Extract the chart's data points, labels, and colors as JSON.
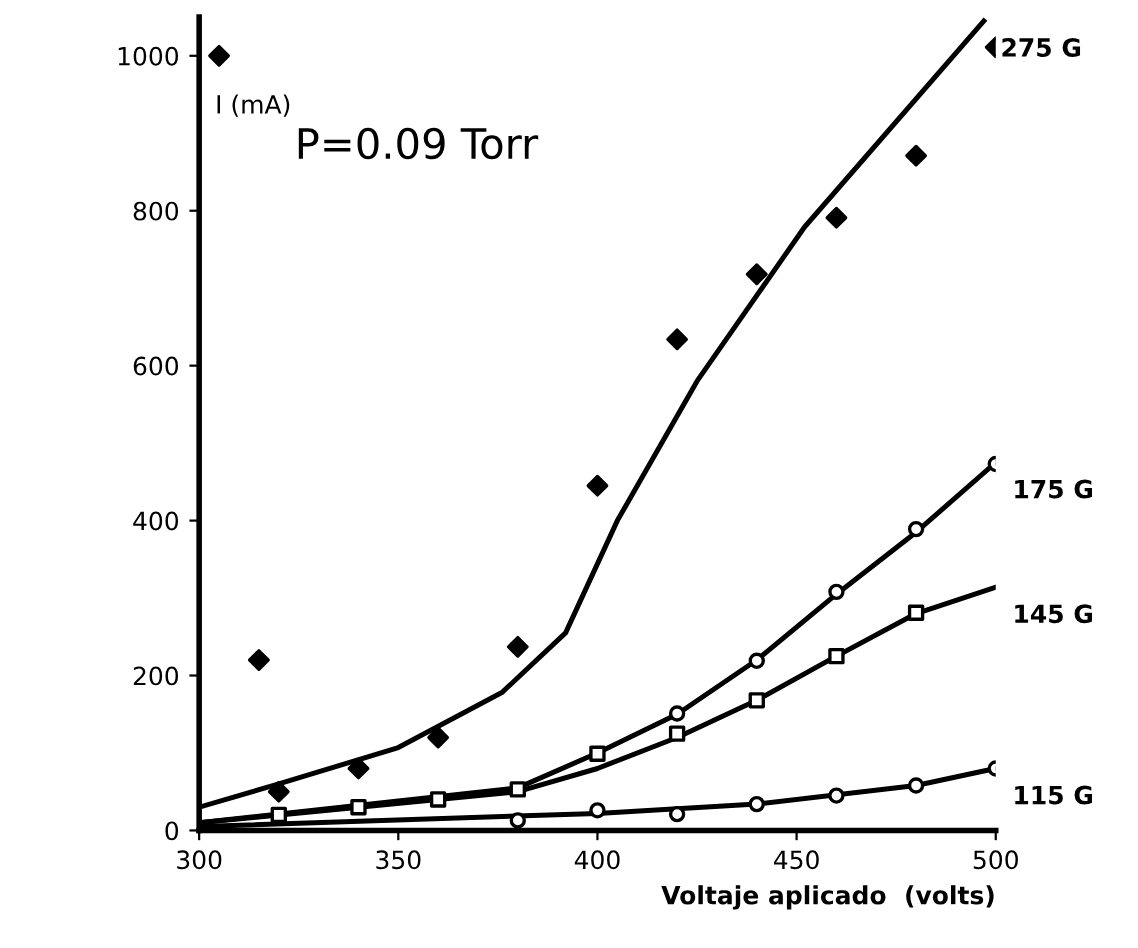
{
  "chart_data": {
    "type": "scatter",
    "xlabel": "Voltaje aplicado  (volts)",
    "ylabel": "I (mA)",
    "xlim": [
      300,
      500
    ],
    "ylim": [
      0,
      1050
    ],
    "xticks": [
      300,
      350,
      400,
      450,
      500
    ],
    "yticks": [
      0,
      200,
      400,
      600,
      800,
      1000
    ],
    "grid": false,
    "legend": false,
    "annotations": [
      "P=0.09 Torr"
    ],
    "series": [
      {
        "marker": "diamond",
        "color": "#000000",
        "x": [
          305,
          315,
          320,
          340,
          360,
          380,
          400,
          420,
          440,
          460,
          480,
          500
        ],
        "values": [
          1000,
          220,
          50,
          80,
          120,
          237,
          445,
          634,
          718,
          791,
          871,
          1011
        ]
      },
      {
        "type": "line",
        "name": "275 G",
        "color": "#000000",
        "x": [
          300,
          320,
          350,
          376,
          392,
          405,
          425,
          452,
          497
        ],
        "values": [
          30,
          60,
          107,
          178,
          255,
          400,
          580,
          779,
          1045
        ]
      },
      {
        "marker": "circle",
        "color": "#000000",
        "x": [
          420,
          440,
          460,
          480,
          500
        ],
        "values": [
          151,
          219,
          308,
          389,
          473
        ]
      },
      {
        "type": "line",
        "name": "175 G",
        "color": "#000000",
        "x": [
          300,
          380,
          400,
          420,
          440,
          460,
          480,
          500
        ],
        "values": [
          10,
          55,
          100,
          150,
          220,
          305,
          385,
          475
        ]
      },
      {
        "marker": "square",
        "color": "#000000",
        "x": [
          320,
          340,
          360,
          380,
          400,
          420,
          440,
          460,
          480
        ],
        "values": [
          20,
          30,
          40,
          53,
          99,
          125,
          168,
          225,
          281
        ]
      },
      {
        "type": "line",
        "name": "145 G",
        "color": "#000000",
        "x": [
          300,
          380,
          400,
          420,
          440,
          460,
          480,
          500
        ],
        "values": [
          10,
          50,
          80,
          120,
          168,
          225,
          280,
          314
        ]
      },
      {
        "marker": "circle",
        "color": "#000000",
        "x": [
          380,
          400,
          420,
          440,
          460,
          480,
          500
        ],
        "values": [
          13,
          26,
          21,
          34,
          45,
          58,
          80
        ]
      },
      {
        "type": "line",
        "name": "115 G",
        "color": "#000000",
        "x": [
          300,
          400,
          440,
          480,
          500
        ],
        "values": [
          5,
          22,
          34,
          58,
          80
        ]
      }
    ]
  }
}
